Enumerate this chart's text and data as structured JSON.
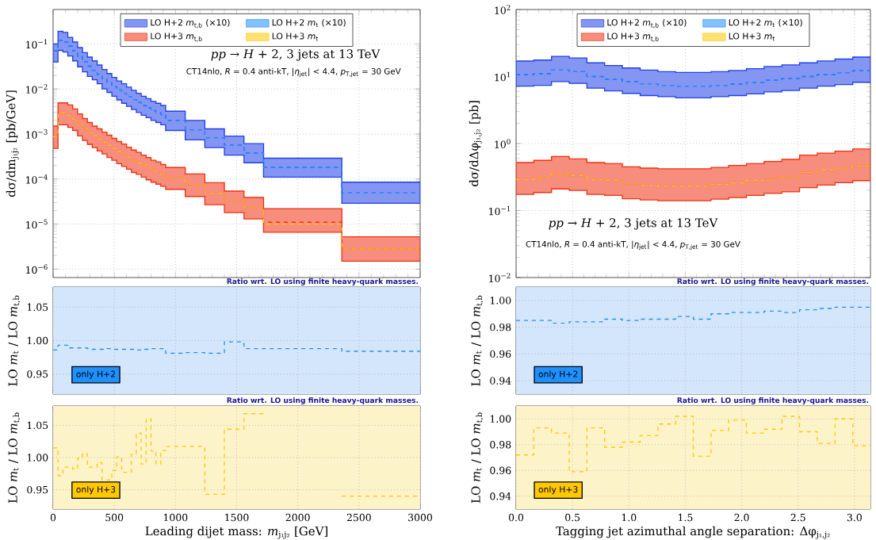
{
  "chart_data": [
    {
      "type": "step",
      "ylabel": "dσ/dm$_{j₁j₂}$ [pb/GeV]",
      "log": "y",
      "grid": true,
      "legend": "top",
      "tick_labels": "y",
      "line_style": "dashed",
      "xlim": [
        0,
        3000
      ],
      "ylim": [
        6.5e-07,
        0.58
      ],
      "xticks": [
        0,
        500,
        1000,
        1500,
        2000,
        2500,
        3000
      ],
      "yticks": [
        {
          "value": 1e-06,
          "label": "10$^{−6}$"
        },
        {
          "value": 1e-05,
          "label": "10$^{−5}$"
        },
        {
          "value": 0.0001,
          "label": "10$^{−4}$"
        },
        {
          "value": 0.001,
          "label": "10$^{−3}$"
        },
        {
          "value": 0.01,
          "label": "10$^{−2}$"
        },
        {
          "value": 0.1,
          "label": "10$^{−1}$"
        }
      ],
      "x": [
        0,
        40,
        80,
        120,
        160,
        200,
        240,
        280,
        320,
        360,
        400,
        440,
        480,
        520,
        560,
        600,
        640,
        680,
        720,
        760,
        800,
        840,
        880,
        920,
        1080,
        1240,
        1400,
        1560,
        1720,
        2360,
        3000
      ],
      "annotations": [
        "*pp* → *H* + 2, 3 jets at 13 TeV",
        "CT14nlo, *R* = 0.4 anti-kT, |*η*$_{jet}$| < 4.4, *p*$_{T,jet}$ = 30 GeV"
      ],
      "series": [
        {
          "name": "LO H+2 *m*$_{t,b}$ (×10)",
          "color": "#2040e8",
          "values": [
            0.07,
            0.12,
            0.11,
            0.09,
            0.07,
            0.052,
            0.04,
            0.032,
            0.026,
            0.021,
            0.017,
            0.014,
            0.0115,
            0.0095,
            0.008,
            0.0068,
            0.0058,
            0.005,
            0.0043,
            0.0038,
            0.0033,
            0.003,
            0.0027,
            0.002,
            0.00124,
            0.00083,
            0.00056,
            0.00038,
            0.00018,
            4.9e-05,
            4.9e-05
          ],
          "upper": [
            0.1,
            0.19,
            0.18,
            0.14,
            0.11,
            0.083,
            0.064,
            0.051,
            0.042,
            0.034,
            0.027,
            0.022,
            0.018,
            0.015,
            0.013,
            0.011,
            0.0093,
            0.008,
            0.0069,
            0.0061,
            0.0053,
            0.0048,
            0.0043,
            0.0032,
            0.002,
            0.0013,
            0.0009,
            0.00061,
            0.00029,
            8.5e-05,
            8.5e-05
          ],
          "lower": [
            0.04,
            0.072,
            0.066,
            0.054,
            0.042,
            0.031,
            0.024,
            0.019,
            0.016,
            0.013,
            0.01,
            0.0084,
            0.0069,
            0.0057,
            0.0048,
            0.0041,
            0.0035,
            0.003,
            0.0026,
            0.0023,
            0.002,
            0.0018,
            0.0016,
            0.0012,
            0.00074,
            0.0005,
            0.00034,
            0.00023,
            0.00011,
            2.9e-05,
            2.9e-05
          ]
        },
        {
          "name": "LO H+2 *m*$_{t}$ (×10)",
          "color": "#1e90ff",
          "values": [
            0.07,
            0.12,
            0.11,
            0.09,
            0.07,
            0.052,
            0.04,
            0.032,
            0.026,
            0.021,
            0.017,
            0.014,
            0.0115,
            0.0095,
            0.008,
            0.0068,
            0.0058,
            0.005,
            0.0043,
            0.0038,
            0.0033,
            0.003,
            0.0027,
            0.002,
            0.00124,
            0.00083,
            0.00056,
            0.00038,
            0.00018,
            4.9e-05,
            4.9e-05
          ]
        },
        {
          "name": "LO H+3 *m*$_{t,b}$",
          "color": "#f03010",
          "values": [
            0.00087,
            0.0029,
            0.0029,
            0.0026,
            0.0021,
            0.00165,
            0.0013,
            0.00107,
            0.0009,
            0.00076,
            0.00065,
            0.00055,
            0.00047,
            0.0004,
            0.00035,
            0.0003,
            0.00026,
            0.00023,
            0.0002,
            0.000175,
            0.000155,
            0.00014,
            0.000125,
            0.000107,
            7.5e-05,
            4.9e-05,
            3.2e-05,
            2.3e-05,
            1.1e-05,
            2.8e-06,
            2.8e-06
          ],
          "upper": [
            0.0015,
            0.0049,
            0.0049,
            0.0044,
            0.0036,
            0.0028,
            0.0022,
            0.0018,
            0.0015,
            0.0013,
            0.0011,
            0.00094,
            0.0008,
            0.00068,
            0.0006,
            0.00051,
            0.00044,
            0.00039,
            0.00034,
            0.0003,
            0.00026,
            0.00024,
            0.00021,
            0.00018,
            0.00013,
            8.3e-05,
            5.4e-05,
            3.9e-05,
            2.2e-05,
            5.2e-06,
            5.2e-06
          ],
          "lower": [
            0.00048,
            0.0016,
            0.0016,
            0.0014,
            0.0012,
            0.00091,
            0.00072,
            0.00059,
            0.0005,
            0.00042,
            0.00036,
            0.0003,
            0.00026,
            0.00022,
            0.00019,
            0.000165,
            0.00014,
            0.000127,
            0.00011,
            9.6e-05,
            8.5e-05,
            7.7e-05,
            6.9e-05,
            5.9e-05,
            4.1e-05,
            2.7e-05,
            1.8e-05,
            1.3e-05,
            6.6e-06,
            1.5e-06,
            1.5e-06
          ]
        },
        {
          "name": "LO H+3 *m*$_{t}$",
          "color": "#ffc800",
          "values": [
            0.00087,
            0.0029,
            0.0029,
            0.0026,
            0.0021,
            0.00165,
            0.0013,
            0.00107,
            0.0009,
            0.00076,
            0.00065,
            0.00055,
            0.00047,
            0.0004,
            0.00035,
            0.0003,
            0.00026,
            0.00023,
            0.0002,
            0.000175,
            0.000155,
            0.00014,
            0.000125,
            0.000107,
            7.5e-05,
            4.9e-05,
            3.2e-05,
            2.3e-05,
            1e-05,
            2.8e-06,
            2.8e-06
          ]
        }
      ]
    },
    {
      "type": "step",
      "ylabel": "dσ/dΔφ$_{j₁,j₂}$ [pb]",
      "log": "y",
      "grid": true,
      "legend": "top",
      "tick_labels": "y",
      "line_style": "dashed",
      "xlim": [
        0,
        3.1416
      ],
      "ylim": [
        0.01,
        100
      ],
      "xticks": [
        {
          "value": 0,
          "label": null
        },
        {
          "value": 0.5,
          "label": null
        },
        {
          "value": 1,
          "label": null
        },
        {
          "value": 1.5,
          "label": null
        },
        {
          "value": 2,
          "label": null
        },
        {
          "value": 2.5,
          "label": null
        },
        {
          "value": 3,
          "label": null
        }
      ],
      "yticks": [
        {
          "value": 0.01,
          "label": "10$^{−2}$"
        },
        {
          "value": 0.1,
          "label": "10$^{−1}$"
        },
        {
          "value": 1,
          "label": "10$^{0}$"
        },
        {
          "value": 10,
          "label": "10$^{1}$"
        },
        {
          "value": 100,
          "label": "10$^{2}$"
        }
      ],
      "x": [
        0,
        0.157,
        0.314,
        0.471,
        0.628,
        0.785,
        0.942,
        1.1,
        1.257,
        1.414,
        1.571,
        1.728,
        1.885,
        2.042,
        2.199,
        2.356,
        2.513,
        2.67,
        2.827,
        2.985,
        3.1416
      ],
      "annotations": [
        "*pp* → *H* + 2, 3 jets at 13 TeV",
        "CT14nlo, *R* = 0.4 anti-kT, |*η*$_{jet}$| < 4.4, *p*$_{T,jet}$ = 30 GeV"
      ],
      "series": [
        {
          "name": "LO H+2 *m*$_{t,b}$ (×10)",
          "color": "#2040e8",
          "values": [
            10.7,
            11,
            12.5,
            11.8,
            10,
            9.1,
            8.4,
            7.8,
            7.4,
            7.2,
            7.2,
            7.4,
            7.7,
            8.2,
            8.8,
            9.3,
            10,
            10.7,
            11.4,
            12.2,
            12.2
          ],
          "upper": [
            17,
            17.6,
            20,
            18.9,
            16,
            14.6,
            13.4,
            12.5,
            11.8,
            11.5,
            11.5,
            11.8,
            12.3,
            13.1,
            14.1,
            14.9,
            16,
            17.1,
            18.2,
            19.5,
            19.5
          ],
          "lower": [
            7.2,
            7.4,
            8.4,
            7.9,
            6.7,
            6.1,
            5.6,
            5.2,
            5,
            4.8,
            4.8,
            5,
            5.2,
            5.5,
            5.9,
            6.2,
            6.7,
            7.2,
            7.6,
            8.2,
            8.2
          ]
        },
        {
          "name": "LO H+2 *m*$_{t}$ (×10)",
          "color": "#1e90ff",
          "values": [
            10.7,
            11,
            12.5,
            11.8,
            10,
            9.1,
            8.4,
            7.8,
            7.4,
            7.2,
            7.2,
            7.4,
            7.7,
            8.2,
            8.8,
            9.3,
            10,
            10.7,
            11.4,
            12.2,
            12.2
          ]
        },
        {
          "name": "LO H+3 *m*$_{t,b}$",
          "color": "#f03010",
          "values": [
            0.29,
            0.31,
            0.355,
            0.33,
            0.29,
            0.28,
            0.25,
            0.24,
            0.233,
            0.233,
            0.233,
            0.247,
            0.26,
            0.28,
            0.3,
            0.32,
            0.37,
            0.4,
            0.43,
            0.46,
            0.46
          ],
          "upper": [
            0.52,
            0.56,
            0.64,
            0.59,
            0.52,
            0.5,
            0.45,
            0.43,
            0.42,
            0.42,
            0.42,
            0.44,
            0.47,
            0.5,
            0.54,
            0.58,
            0.67,
            0.72,
            0.77,
            0.83,
            0.83
          ],
          "lower": [
            0.174,
            0.186,
            0.21,
            0.2,
            0.174,
            0.168,
            0.15,
            0.144,
            0.14,
            0.14,
            0.14,
            0.148,
            0.156,
            0.168,
            0.18,
            0.19,
            0.22,
            0.24,
            0.26,
            0.28,
            0.28
          ]
        },
        {
          "name": "LO H+3 *m*$_{t}$",
          "color": "#ffc800",
          "values": [
            0.29,
            0.31,
            0.355,
            0.33,
            0.29,
            0.28,
            0.25,
            0.24,
            0.233,
            0.233,
            0.233,
            0.247,
            0.26,
            0.28,
            0.3,
            0.32,
            0.37,
            0.4,
            0.43,
            0.46,
            0.46
          ]
        }
      ]
    },
    {
      "type": "step",
      "ylabel": "LO *m*$_{t}$ / LO *m*$_{t,b}$",
      "grid": true,
      "tick_labels": "y",
      "line_style": "dashed",
      "xlim": [
        0,
        3000
      ],
      "ylim": [
        0.92,
        1.08
      ],
      "xticks": [
        0,
        500,
        1000,
        1500,
        2000,
        2500,
        3000
      ],
      "yticks": [
        {
          "value": 0.95,
          "label": "0.95"
        },
        {
          "value": 1,
          "label": "1.00"
        },
        {
          "value": 1.05,
          "label": "1.05"
        }
      ],
      "x": [
        0,
        40,
        80,
        120,
        160,
        200,
        240,
        280,
        320,
        360,
        400,
        440,
        480,
        520,
        560,
        600,
        640,
        680,
        720,
        760,
        800,
        840,
        880,
        920,
        1080,
        1240,
        1400,
        1560,
        1720,
        2360,
        3000
      ],
      "bands": [
        {
          "axis": "y",
          "from": 0.92,
          "to": 1.08,
          "color": "#d3e6fb"
        }
      ],
      "annotations": [
        "Ratio wrt. LO using finite heavy-quark masses.",
        "only H+2"
      ],
      "series": [
        {
          "color": "#1e90ff",
          "values": [
            0.986,
            0.993,
            0.993,
            0.989,
            0.989,
            0.989,
            0.989,
            0.988,
            0.987,
            0.987,
            0.987,
            0.988,
            0.987,
            0.987,
            0.987,
            0.987,
            0.987,
            0.986,
            0.987,
            0.987,
            0.988,
            0.988,
            0.988,
            0.981,
            0.982,
            0.981,
            0.998,
            0.988,
            0.988,
            0.984,
            0.984
          ]
        }
      ]
    },
    {
      "type": "step",
      "ylabel": "LO *m*$_{t}$ / LO *m*$_{t,b}$",
      "grid": true,
      "tick_labels": "y",
      "line_style": "dashed",
      "xlim": [
        0,
        3.1416
      ],
      "ylim": [
        0.93,
        1.01
      ],
      "xticks": [
        {
          "value": 0,
          "label": null
        },
        {
          "value": 0.5,
          "label": null
        },
        {
          "value": 1,
          "label": null
        },
        {
          "value": 1.5,
          "label": null
        },
        {
          "value": 2,
          "label": null
        },
        {
          "value": 2.5,
          "label": null
        },
        {
          "value": 3,
          "label": null
        }
      ],
      "yticks": [
        {
          "value": 0.94,
          "label": "0.94"
        },
        {
          "value": 0.96,
          "label": "0.96"
        },
        {
          "value": 0.98,
          "label": "0.98"
        },
        {
          "value": 1,
          "label": "1.00"
        }
      ],
      "x": [
        0,
        0.157,
        0.314,
        0.471,
        0.628,
        0.785,
        0.942,
        1.1,
        1.257,
        1.414,
        1.571,
        1.728,
        1.885,
        2.042,
        2.199,
        2.356,
        2.513,
        2.67,
        2.827,
        2.985,
        3.1416
      ],
      "bands": [
        {
          "axis": "y",
          "from": 0.93,
          "to": 1.01,
          "color": "#d3e6fb"
        }
      ],
      "annotations": [
        "Ratio wrt. LO using finite heavy-quark masses.",
        "only H+2"
      ],
      "series": [
        {
          "color": "#1e90ff",
          "values": [
            0.985,
            0.985,
            0.983,
            0.984,
            0.984,
            0.986,
            0.985,
            0.986,
            0.986,
            0.988,
            0.986,
            0.99,
            0.991,
            0.991,
            0.992,
            0.991,
            0.993,
            0.994,
            0.995,
            0.995,
            0.995
          ]
        }
      ]
    },
    {
      "type": "step",
      "xlabel": "Leading dijet mass:  *m*$_{j₁j₂}$ [GeV]",
      "ylabel": "LO *m*$_{t}$ / LO *m*$_{t,b}$",
      "grid": true,
      "line_style": "dashed",
      "xlim": [
        0,
        3000
      ],
      "ylim": [
        0.92,
        1.08
      ],
      "xticks": [
        0,
        500,
        1000,
        1500,
        2000,
        2500,
        3000
      ],
      "yticks": [
        {
          "value": 0.95,
          "label": "0.95"
        },
        {
          "value": 1,
          "label": "1.00"
        },
        {
          "value": 1.05,
          "label": "1.05"
        }
      ],
      "x": [
        0,
        40,
        80,
        120,
        160,
        200,
        240,
        280,
        320,
        360,
        400,
        440,
        480,
        520,
        560,
        600,
        640,
        680,
        720,
        760,
        800,
        840,
        880,
        920,
        1080,
        1240,
        1400,
        1560,
        1720,
        2360,
        3000
      ],
      "bands": [
        {
          "axis": "y",
          "from": 0.92,
          "to": 1.08,
          "color": "#fdf3c9"
        }
      ],
      "annotations": [
        "Ratio wrt. LO using finite heavy-quark masses.",
        "only H+3"
      ],
      "series": [
        {
          "color": "#ffc800",
          "values": [
            1.015,
            0.972,
            0.985,
            0.985,
            0.982,
            0.999,
            1.006,
            0.985,
            0.985,
            0.992,
            0.965,
            0.965,
            0.98,
            1.001,
            0.977,
            0.977,
            1.005,
            1.038,
            0.99,
            1.06,
            1.01,
            0.99,
            1.011,
            1.017,
            1.017,
            0.943,
            1.044,
            1.068,
            null,
            0.94,
            0.94
          ]
        }
      ]
    },
    {
      "type": "step",
      "xlabel": "Tagging jet azimuthal angle separation:  Δφ$_{j₁,j₂}$",
      "ylabel": "LO *m*$_{t}$ / LO *m*$_{t,b}$",
      "grid": true,
      "line_style": "dashed",
      "xlim": [
        0,
        3.1416
      ],
      "ylim": [
        0.93,
        1.01
      ],
      "xticks": [
        {
          "value": 0,
          "label": "0.0"
        },
        {
          "value": 0.5,
          "label": "0.5"
        },
        {
          "value": 1,
          "label": "1.0"
        },
        {
          "value": 1.5,
          "label": "1.5"
        },
        {
          "value": 2,
          "label": "2.0"
        },
        {
          "value": 2.5,
          "label": "2.5"
        },
        {
          "value": 3,
          "label": "3.0"
        }
      ],
      "yticks": [
        {
          "value": 0.94,
          "label": "0.94"
        },
        {
          "value": 0.96,
          "label": "0.96"
        },
        {
          "value": 0.98,
          "label": "0.98"
        },
        {
          "value": 1,
          "label": "1.00"
        }
      ],
      "x": [
        0,
        0.157,
        0.314,
        0.471,
        0.628,
        0.785,
        0.942,
        1.1,
        1.257,
        1.414,
        1.571,
        1.728,
        1.885,
        2.042,
        2.199,
        2.356,
        2.513,
        2.67,
        2.827,
        2.985,
        3.1416
      ],
      "bands": [
        {
          "axis": "y",
          "from": 0.93,
          "to": 1.01,
          "color": "#fdf3c9"
        }
      ],
      "annotations": [
        "Ratio wrt. LO using finite heavy-quark masses.",
        "only H+3"
      ],
      "series": [
        {
          "color": "#ffc800",
          "values": [
            0.972,
            0.993,
            0.989,
            0.959,
            0.993,
            0.978,
            0.982,
            0.987,
            0.996,
            1.002,
            0.971,
            0.991,
            0.999,
            0.989,
            0.992,
            1.002,
            0.99,
            0.981,
            1.0,
            0.979,
            0.979
          ]
        }
      ]
    }
  ]
}
